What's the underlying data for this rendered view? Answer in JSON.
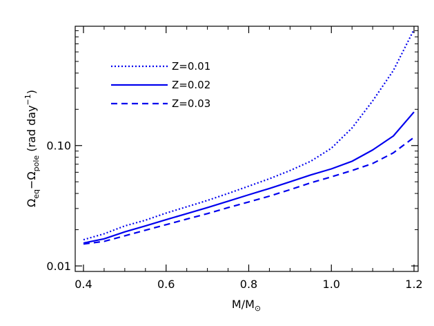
{
  "chart_data": {
    "type": "line",
    "xlabel": "M/M⊙",
    "xlabel_parts": {
      "main": "M/M",
      "sub": "⊙"
    },
    "ylabel_parts": {
      "omega1": "Ω",
      "sub1": "eq",
      "dash": "−",
      "omega2": "Ω",
      "sub2": "pole",
      "unit_open": " (rad day",
      "unit_sup": "−1",
      "unit_close": ")"
    },
    "xlim": [
      0.38,
      1.21
    ],
    "ylim": [
      0.009,
      0.98
    ],
    "yscale": "log",
    "x_ticks": [
      "0.4",
      "0.6",
      "0.8",
      "1.0",
      "1.2"
    ],
    "y_ticks": [
      "0.01",
      "0.10"
    ],
    "legend_position": "top-left",
    "line_color": "#0000ee",
    "series": [
      {
        "name": "Z=0.01",
        "style": "dotted",
        "x": [
          0.4,
          0.45,
          0.5,
          0.55,
          0.6,
          0.65,
          0.7,
          0.75,
          0.8,
          0.85,
          0.9,
          0.95,
          1.0,
          1.05,
          1.1,
          1.15,
          1.2
        ],
        "y": [
          0.0165,
          0.0185,
          0.0215,
          0.024,
          0.0275,
          0.031,
          0.035,
          0.04,
          0.046,
          0.053,
          0.062,
          0.074,
          0.095,
          0.14,
          0.235,
          0.42,
          0.92
        ]
      },
      {
        "name": "Z=0.02",
        "style": "solid",
        "x": [
          0.4,
          0.45,
          0.5,
          0.55,
          0.6,
          0.65,
          0.7,
          0.75,
          0.8,
          0.85,
          0.9,
          0.95,
          1.0,
          1.05,
          1.1,
          1.15,
          1.2
        ],
        "y": [
          0.0155,
          0.0168,
          0.0192,
          0.0215,
          0.0242,
          0.0272,
          0.0305,
          0.0345,
          0.039,
          0.044,
          0.05,
          0.057,
          0.064,
          0.074,
          0.092,
          0.12,
          0.19
        ]
      },
      {
        "name": "Z=0.03",
        "style": "dashed",
        "x": [
          0.4,
          0.45,
          0.5,
          0.55,
          0.6,
          0.65,
          0.7,
          0.75,
          0.8,
          0.85,
          0.9,
          0.95,
          1.0,
          1.05,
          1.1,
          1.15,
          1.2
        ],
        "y": [
          0.0152,
          0.016,
          0.0178,
          0.0198,
          0.022,
          0.0245,
          0.0272,
          0.0305,
          0.034,
          0.038,
          0.043,
          0.049,
          0.055,
          0.062,
          0.071,
          0.087,
          0.117
        ]
      }
    ]
  }
}
